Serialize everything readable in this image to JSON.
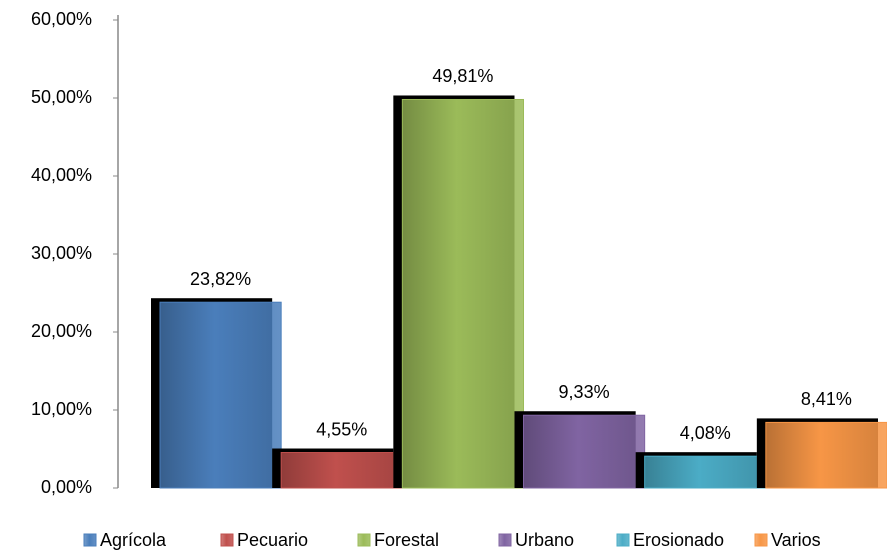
{
  "chart_data": {
    "type": "bar",
    "categories": [
      "Agrícola",
      "Pecuario",
      "Forestal",
      "Urbano",
      "Erosionado",
      "Varios"
    ],
    "values": [
      23.82,
      4.55,
      49.81,
      9.33,
      4.08,
      8.41
    ],
    "value_labels": [
      "23,82%",
      "4,55%",
      "49,81%",
      "9,33%",
      "4,08%",
      "8,41%"
    ],
    "colors": [
      "#4a7ebb",
      "#c0504d",
      "#9bbb59",
      "#8064a2",
      "#4bacc6",
      "#f79646"
    ],
    "ylim": [
      0,
      60
    ],
    "yticks": [
      {
        "value": 0,
        "label": "0,00%"
      },
      {
        "value": 10,
        "label": "10,00%"
      },
      {
        "value": 20,
        "label": "20,00%"
      },
      {
        "value": 30,
        "label": "30,00%"
      },
      {
        "value": 40,
        "label": "40,00%"
      },
      {
        "value": 50,
        "label": "50,00%"
      },
      {
        "value": 60,
        "label": "60,00%"
      }
    ],
    "grid": false,
    "legend": "bottom"
  }
}
